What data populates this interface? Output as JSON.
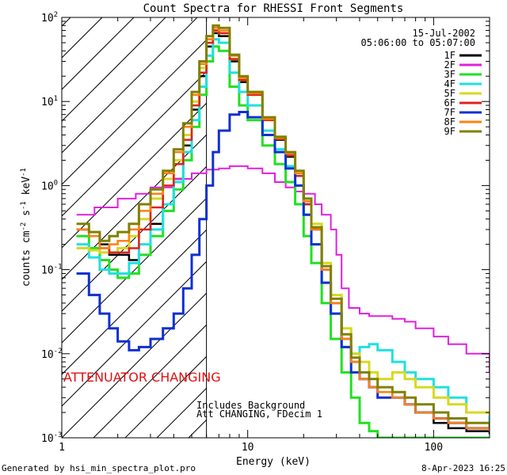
{
  "chart_data": {
    "type": "line",
    "title": "Count Spectra for RHESSI Front Segments",
    "xlabel": "Energy (keV)",
    "ylabel_parts": [
      "counts cm",
      "-2",
      " s",
      "-1",
      " keV",
      "-1"
    ],
    "x_scale": "log",
    "y_scale": "log",
    "xlim": [
      1,
      200
    ],
    "ylim": [
      0.001,
      100
    ],
    "x_ticks": [
      {
        "value": 1,
        "label": "1"
      },
      {
        "value": 10,
        "label": "10"
      },
      {
        "value": 100,
        "label": "100"
      }
    ],
    "y_ticks": [
      {
        "value": 0.001,
        "base": "10",
        "exp": "-3"
      },
      {
        "value": 0.01,
        "base": "10",
        "exp": "-2"
      },
      {
        "value": 0.1,
        "base": "10",
        "exp": "-1"
      },
      {
        "value": 1,
        "base": "10",
        "exp": "0"
      },
      {
        "value": 10,
        "base": "10",
        "exp": "1"
      },
      {
        "value": 100,
        "base": "10",
        "exp": "2"
      }
    ],
    "date": "15-Jul-2002",
    "time_range": "05:06:00 to 05:07:00",
    "attenuator_label": "ATTENUATOR CHANGING",
    "attenuator_boundary_kev": 6,
    "notes": [
      "Includes Background",
      "Att CHANGING, FDecim 1"
    ],
    "footer_left": "Generated by hsi_min_spectra_plot.pro",
    "footer_right": "8-Apr-2023 16:25",
    "series": [
      {
        "name": "1F",
        "color": "#000000",
        "width": 2.5,
        "x": [
          1.2,
          1.4,
          1.6,
          1.8,
          2.0,
          2.3,
          2.6,
          3.0,
          3.5,
          4.0,
          4.5,
          5.0,
          5.5,
          6.0,
          6.5,
          7.0,
          8.0,
          9.0,
          10,
          12,
          14,
          16,
          18,
          20,
          22,
          25,
          28,
          32,
          36,
          40,
          45,
          50,
          60,
          70,
          80,
          100,
          120,
          150,
          200
        ],
        "y": [
          0.3,
          0.25,
          0.2,
          0.15,
          0.15,
          0.13,
          0.15,
          0.35,
          0.6,
          1.2,
          3,
          8,
          20,
          45,
          65,
          60,
          30,
          17,
          12,
          6,
          3.5,
          2.2,
          1.3,
          0.6,
          0.3,
          0.1,
          0.04,
          0.015,
          0.008,
          0.005,
          0.004,
          0.003,
          0.003,
          0.0025,
          0.002,
          0.0015,
          0.0013,
          0.0012,
          0.0011
        ]
      },
      {
        "name": "2F",
        "color": "#e020e0",
        "width": 2,
        "x": [
          1.2,
          1.5,
          2.0,
          2.5,
          3.0,
          4.0,
          5.0,
          6.0,
          7.0,
          8.0,
          9.0,
          10,
          12,
          14,
          16,
          18,
          20,
          23,
          25,
          28,
          30,
          32,
          35,
          40,
          45,
          50,
          60,
          70,
          80,
          100,
          120,
          150,
          200
        ],
        "y": [
          0.45,
          0.55,
          0.7,
          0.8,
          0.95,
          1.2,
          1.4,
          1.55,
          1.6,
          1.7,
          1.7,
          1.6,
          1.4,
          1.1,
          0.95,
          0.85,
          0.8,
          0.6,
          0.45,
          0.3,
          0.15,
          0.06,
          0.035,
          0.03,
          0.028,
          0.028,
          0.026,
          0.024,
          0.02,
          0.016,
          0.013,
          0.01,
          0.006
        ]
      },
      {
        "name": "3F",
        "color": "#22e022",
        "width": 3,
        "x": [
          1.2,
          1.4,
          1.6,
          1.8,
          2.0,
          2.3,
          2.6,
          3.0,
          3.5,
          4.0,
          4.5,
          5.0,
          5.5,
          6.0,
          6.5,
          7.0,
          8.0,
          9.0,
          10,
          12,
          14,
          16,
          18,
          20,
          22,
          25,
          28,
          32,
          36,
          40,
          45,
          50,
          60,
          70,
          80,
          100,
          120,
          150,
          200
        ],
        "y": [
          0.25,
          0.18,
          0.13,
          0.1,
          0.08,
          0.09,
          0.15,
          0.25,
          0.5,
          0.9,
          2,
          5,
          12,
          30,
          45,
          40,
          15,
          9,
          6,
          3,
          1.8,
          1.1,
          0.6,
          0.25,
          0.12,
          0.04,
          0.015,
          0.006,
          0.003,
          0.0015,
          0.0012,
          0.001,
          0.001,
          0.001,
          0.001,
          0.001,
          0.001,
          0.001,
          0.001
        ]
      },
      {
        "name": "4F",
        "color": "#20e0e0",
        "width": 3,
        "x": [
          1.2,
          1.4,
          1.6,
          1.8,
          2.0,
          2.3,
          2.6,
          3.0,
          3.5,
          4.0,
          4.5,
          5.0,
          5.5,
          6.0,
          6.5,
          7.0,
          8.0,
          9.0,
          10,
          12,
          14,
          16,
          18,
          20,
          22,
          25,
          28,
          32,
          36,
          40,
          45,
          50,
          60,
          70,
          80,
          100,
          120,
          150,
          200
        ],
        "y": [
          0.2,
          0.14,
          0.1,
          0.09,
          0.09,
          0.12,
          0.2,
          0.3,
          0.6,
          1.1,
          2.5,
          6,
          15,
          35,
          55,
          50,
          22,
          13,
          9,
          4.5,
          2.7,
          1.7,
          1.0,
          0.45,
          0.2,
          0.07,
          0.03,
          0.012,
          0.01,
          0.012,
          0.013,
          0.011,
          0.008,
          0.006,
          0.005,
          0.004,
          0.003,
          0.002,
          0.0015
        ]
      },
      {
        "name": "5F",
        "color": "#d8d820",
        "width": 3,
        "x": [
          1.2,
          1.4,
          1.6,
          1.8,
          2.0,
          2.3,
          2.6,
          3.0,
          3.5,
          4.0,
          4.5,
          5.0,
          5.5,
          6.0,
          6.5,
          7.0,
          8.0,
          9.0,
          10,
          12,
          14,
          16,
          18,
          20,
          22,
          25,
          28,
          32,
          36,
          40,
          45,
          50,
          60,
          70,
          80,
          100,
          120,
          150,
          200
        ],
        "y": [
          0.18,
          0.17,
          0.16,
          0.16,
          0.18,
          0.25,
          0.4,
          0.7,
          1.2,
          2,
          4,
          10,
          25,
          55,
          70,
          65,
          32,
          18,
          12,
          6,
          3.6,
          2.3,
          1.4,
          0.7,
          0.35,
          0.12,
          0.05,
          0.02,
          0.01,
          0.008,
          0.006,
          0.005,
          0.006,
          0.005,
          0.004,
          0.003,
          0.0025,
          0.002,
          0.0018
        ]
      },
      {
        "name": "6F",
        "color": "#e02020",
        "width": 2.5,
        "x": [
          1.2,
          1.4,
          1.6,
          1.8,
          2.0,
          2.3,
          2.6,
          3.0,
          3.5,
          4.0,
          4.5,
          5.0,
          5.5,
          6.0,
          6.5,
          7.0,
          8.0,
          9.0,
          10,
          12,
          14,
          16,
          18,
          20,
          22,
          25,
          28,
          32,
          36,
          40,
          45,
          50,
          60,
          70,
          80,
          100,
          120,
          150,
          200
        ],
        "y": [
          0.3,
          0.25,
          0.18,
          0.16,
          0.16,
          0.18,
          0.3,
          0.55,
          1.0,
          1.8,
          3.5,
          9,
          22,
          50,
          70,
          65,
          32,
          18,
          12,
          6,
          3.6,
          2.3,
          1.3,
          0.6,
          0.3,
          0.1,
          0.04,
          0.015,
          0.008,
          0.005,
          0.004,
          0.0035,
          0.003,
          0.0025,
          0.002,
          0.0017,
          0.0015,
          0.0013,
          0.0012
        ]
      },
      {
        "name": "7F",
        "color": "#1030d0",
        "width": 3,
        "x": [
          1.2,
          1.4,
          1.6,
          1.8,
          2.0,
          2.3,
          2.6,
          3.0,
          3.5,
          4.0,
          4.5,
          5.0,
          5.5,
          6.0,
          6.5,
          7.0,
          8.0,
          9.0,
          10,
          12,
          14,
          16,
          18,
          20,
          22,
          25,
          28,
          32,
          36,
          40,
          45,
          50,
          60,
          70,
          80,
          100,
          120,
          150,
          200
        ],
        "y": [
          0.09,
          0.05,
          0.03,
          0.02,
          0.014,
          0.011,
          0.012,
          0.015,
          0.02,
          0.03,
          0.06,
          0.15,
          0.4,
          1.0,
          2.5,
          4.5,
          7,
          7.5,
          6.5,
          4,
          2.5,
          1.6,
          1.0,
          0.45,
          0.2,
          0.07,
          0.03,
          0.012,
          0.006,
          0.005,
          0.004,
          0.003,
          0.003,
          0.0025,
          0.002,
          0.0017,
          0.0015,
          0.0013,
          0.0012
        ]
      },
      {
        "name": "8F",
        "color": "#ff8010",
        "width": 2.5,
        "x": [
          1.2,
          1.4,
          1.6,
          1.8,
          2.0,
          2.3,
          2.6,
          3.0,
          3.5,
          4.0,
          4.5,
          5.0,
          5.5,
          6.0,
          6.5,
          7.0,
          8.0,
          9.0,
          10,
          12,
          14,
          16,
          18,
          20,
          22,
          25,
          28,
          32,
          36,
          40,
          45,
          50,
          60,
          70,
          80,
          100,
          120,
          150,
          200
        ],
        "y": [
          0.3,
          0.25,
          0.18,
          0.2,
          0.22,
          0.3,
          0.5,
          0.8,
          1.4,
          2.5,
          5,
          12,
          28,
          55,
          75,
          70,
          35,
          19,
          12.5,
          6.2,
          3.7,
          2.4,
          1.4,
          0.65,
          0.3,
          0.1,
          0.04,
          0.015,
          0.008,
          0.005,
          0.004,
          0.0035,
          0.003,
          0.0025,
          0.002,
          0.0017,
          0.0015,
          0.0013,
          0.0012
        ]
      },
      {
        "name": "9F",
        "color": "#808000",
        "width": 3,
        "x": [
          1.2,
          1.4,
          1.6,
          1.8,
          2.0,
          2.3,
          2.6,
          3.0,
          3.5,
          4.0,
          4.5,
          5.0,
          5.5,
          6.0,
          6.5,
          7.0,
          8.0,
          9.0,
          10,
          12,
          14,
          16,
          18,
          20,
          22,
          25,
          28,
          32,
          36,
          40,
          45,
          50,
          60,
          70,
          80,
          100,
          120,
          150,
          200
        ],
        "y": [
          0.35,
          0.28,
          0.22,
          0.25,
          0.28,
          0.35,
          0.6,
          0.9,
          1.5,
          2.7,
          5.5,
          13,
          30,
          60,
          80,
          75,
          36,
          20,
          13,
          6.5,
          3.8,
          2.5,
          1.5,
          0.7,
          0.32,
          0.11,
          0.045,
          0.017,
          0.009,
          0.006,
          0.005,
          0.004,
          0.0035,
          0.003,
          0.0025,
          0.002,
          0.0017,
          0.0015,
          0.0013
        ]
      }
    ]
  }
}
